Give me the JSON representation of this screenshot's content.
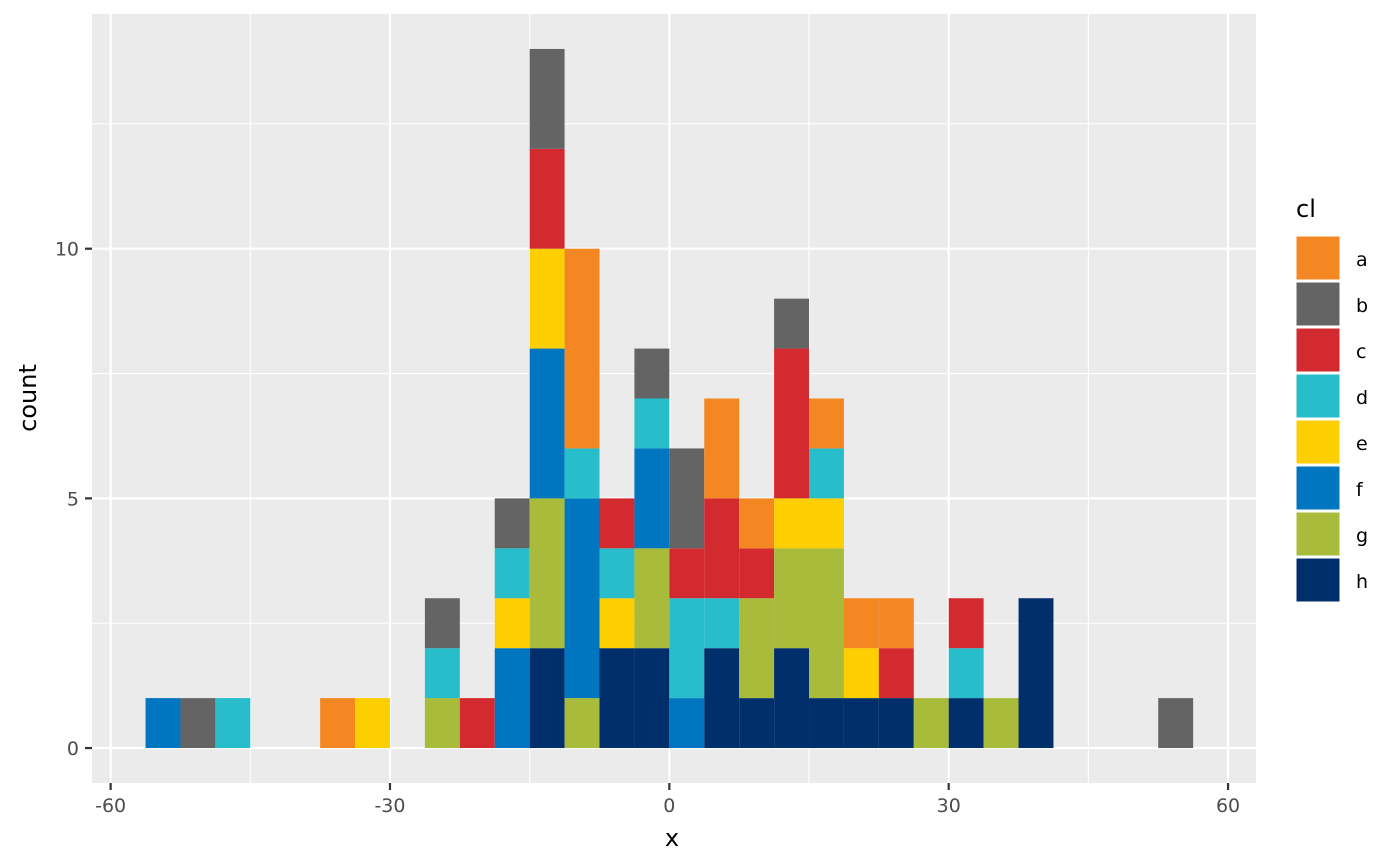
{
  "chart_data": {
    "type": "bar",
    "stacked": true,
    "xlabel": "x",
    "ylabel": "count",
    "xlim": [
      -62,
      63
    ],
    "ylim": [
      -0.7,
      14.7
    ],
    "x_ticks": [
      -60,
      -30,
      0,
      30,
      60
    ],
    "y_ticks": [
      0,
      5,
      10
    ],
    "grid": true,
    "background": "#ebebeb",
    "legend": {
      "title": "cl",
      "position": "right"
    },
    "categories": [
      "a",
      "b",
      "c",
      "d",
      "e",
      "f",
      "g",
      "h"
    ],
    "colors": {
      "a": "#f58722",
      "b": "#636463",
      "c": "#d32a30",
      "d": "#27bdcb",
      "e": "#fdce00",
      "f": "#0076c0",
      "g": "#a8bb3a",
      "h": "#002f6c"
    },
    "bin_width": 3.75,
    "bins": [
      {
        "x": -54.375,
        "counts": {
          "f": 1
        }
      },
      {
        "x": -50.625,
        "counts": {
          "b": 1
        }
      },
      {
        "x": -46.875,
        "counts": {
          "d": 1
        }
      },
      {
        "x": -35.625,
        "counts": {
          "a": 1
        }
      },
      {
        "x": -31.875,
        "counts": {
          "e": 1
        }
      },
      {
        "x": -24.375,
        "counts": {
          "g": 1,
          "d": 1,
          "b": 1
        }
      },
      {
        "x": -20.625,
        "counts": {
          "c": 1
        }
      },
      {
        "x": -16.875,
        "counts": {
          "f": 2,
          "e": 1,
          "d": 1,
          "b": 1
        }
      },
      {
        "x": -13.125,
        "counts": {
          "h": 2,
          "g": 3,
          "f": 3,
          "e": 2,
          "c": 2,
          "b": 2
        }
      },
      {
        "x": -9.375,
        "counts": {
          "g": 1,
          "f": 4,
          "d": 1,
          "a": 4
        }
      },
      {
        "x": -5.625,
        "counts": {
          "h": 2,
          "e": 1,
          "d": 1,
          "c": 1
        }
      },
      {
        "x": -1.875,
        "counts": {
          "h": 2,
          "g": 2,
          "f": 2,
          "d": 1,
          "b": 1
        }
      },
      {
        "x": 1.875,
        "counts": {
          "f": 1,
          "d": 2,
          "c": 1,
          "b": 2
        }
      },
      {
        "x": 5.625,
        "counts": {
          "h": 2,
          "d": 1,
          "c": 2,
          "a": 2
        }
      },
      {
        "x": 9.375,
        "counts": {
          "h": 1,
          "g": 2,
          "c": 1,
          "a": 1
        }
      },
      {
        "x": 13.125,
        "counts": {
          "h": 2,
          "g": 2,
          "e": 1,
          "c": 3,
          "b": 1
        }
      },
      {
        "x": 16.875,
        "counts": {
          "h": 1,
          "g": 3,
          "e": 1,
          "d": 1,
          "a": 1
        }
      },
      {
        "x": 20.625,
        "counts": {
          "h": 1,
          "e": 1,
          "a": 1
        }
      },
      {
        "x": 24.375,
        "counts": {
          "h": 1,
          "c": 1,
          "a": 1
        }
      },
      {
        "x": 28.125,
        "counts": {
          "g": 1
        }
      },
      {
        "x": 31.875,
        "counts": {
          "h": 1,
          "d": 1,
          "c": 1
        }
      },
      {
        "x": 35.625,
        "counts": {
          "g": 1
        }
      },
      {
        "x": 39.375,
        "counts": {
          "h": 3
        }
      },
      {
        "x": 54.375,
        "counts": {
          "b": 1
        }
      }
    ]
  }
}
